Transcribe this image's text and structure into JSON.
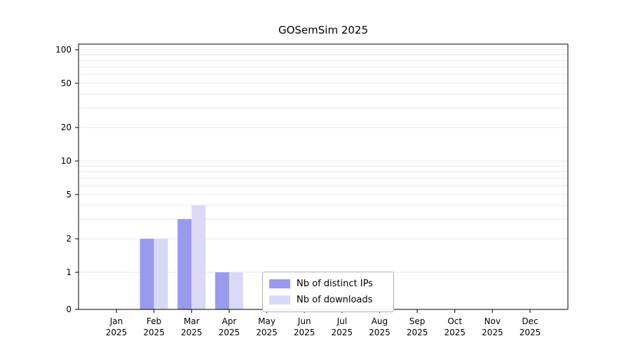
{
  "chart_data": {
    "type": "bar",
    "title": "GOSemSim 2025",
    "categories": [
      "Jan",
      "Feb",
      "Mar",
      "Apr",
      "May",
      "Jun",
      "Jul",
      "Aug",
      "Sep",
      "Oct",
      "Nov",
      "Dec"
    ],
    "year_label": "2025",
    "series": [
      {
        "name": "Nb of distinct IPs",
        "color": "#9999ee",
        "values": [
          0,
          2,
          3,
          1,
          0,
          0,
          0,
          0,
          0,
          0,
          0,
          0
        ]
      },
      {
        "name": "Nb of downloads",
        "color": "#d9d9f7",
        "values": [
          0,
          2,
          4,
          1,
          0,
          0,
          0,
          0,
          0,
          0,
          0,
          0
        ]
      }
    ],
    "yticks": [
      0,
      1,
      2,
      5,
      10,
      20,
      50,
      100
    ],
    "yscale": "log",
    "ylim": [
      0,
      100
    ],
    "grid": true,
    "legend_position": "inside-bottom-center",
    "colors": {
      "axis": "#000000",
      "gridline": "#e7e7e7",
      "text": "#000000"
    }
  }
}
